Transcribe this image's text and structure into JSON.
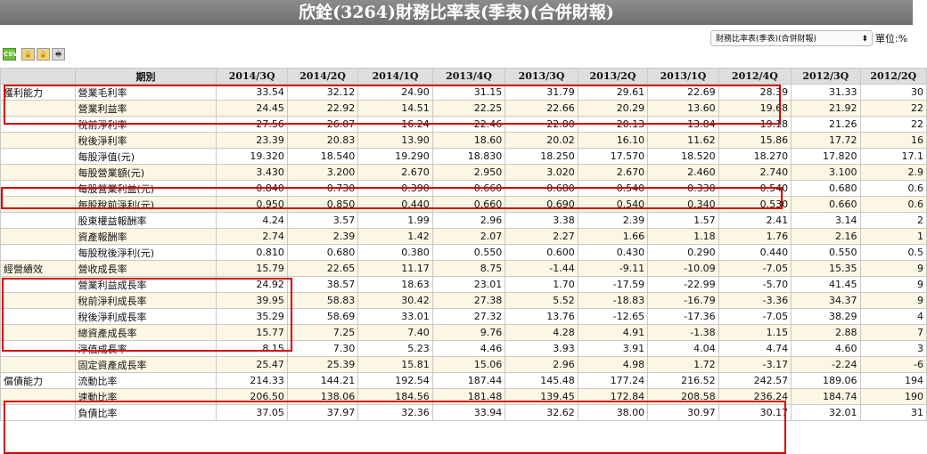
{
  "title": "欣銓(3264)財務比率表(季表)(合併財報)",
  "toolbar": {
    "csv_label": "CSV",
    "report_select_value": "財務比率表(季表)(合併財報)",
    "unit_label": "單位:%"
  },
  "table": {
    "header_label": "期別",
    "periods": [
      "2014/3Q",
      "2014/2Q",
      "2014/1Q",
      "2013/4Q",
      "2013/3Q",
      "2013/2Q",
      "2013/1Q",
      "2012/4Q",
      "2012/3Q",
      "2012/2Q"
    ],
    "rows": [
      {
        "category": "獲利能力",
        "item": "營業毛利率",
        "values": [
          "33.54",
          "32.12",
          "24.90",
          "31.15",
          "31.79",
          "29.61",
          "22.69",
          "28.39",
          "31.33",
          "30"
        ]
      },
      {
        "category": "",
        "item": "營業利益率",
        "values": [
          "24.45",
          "22.92",
          "14.51",
          "22.25",
          "22.66",
          "20.29",
          "13.60",
          "19.68",
          "21.92",
          "22"
        ]
      },
      {
        "category": "",
        "item": "稅前淨利率",
        "values": [
          "27.56",
          "26.07",
          "16.24",
          "22.46",
          "22.80",
          "20.13",
          "13.84",
          "19.18",
          "21.26",
          "22"
        ]
      },
      {
        "category": "",
        "item": "稅後淨利率",
        "values": [
          "23.39",
          "20.83",
          "13.90",
          "18.60",
          "20.02",
          "16.10",
          "11.62",
          "15.86",
          "17.72",
          "16"
        ]
      },
      {
        "category": "",
        "item": "每股淨值(元)",
        "values": [
          "19.320",
          "18.540",
          "19.290",
          "18.830",
          "18.250",
          "17.570",
          "18.520",
          "18.270",
          "17.820",
          "17.1"
        ]
      },
      {
        "category": "",
        "item": "每股營業額(元)",
        "values": [
          "3.430",
          "3.200",
          "2.670",
          "2.950",
          "3.020",
          "2.670",
          "2.460",
          "2.740",
          "3.100",
          "2.9"
        ]
      },
      {
        "category": "",
        "item": "每股營業利益(元)",
        "values": [
          "0.840",
          "0.730",
          "0.390",
          "0.660",
          "0.680",
          "0.540",
          "0.330",
          "0.540",
          "0.680",
          "0.6"
        ]
      },
      {
        "category": "",
        "item": "每股稅前淨利(元)",
        "values": [
          "0.950",
          "0.850",
          "0.440",
          "0.660",
          "0.690",
          "0.540",
          "0.340",
          "0.530",
          "0.660",
          "0.6"
        ]
      },
      {
        "category": "",
        "item": "股東權益報酬率",
        "values": [
          "4.24",
          "3.57",
          "1.99",
          "2.96",
          "3.38",
          "2.39",
          "1.57",
          "2.41",
          "3.14",
          "2"
        ]
      },
      {
        "category": "",
        "item": "資產報酬率",
        "values": [
          "2.74",
          "2.39",
          "1.42",
          "2.07",
          "2.27",
          "1.66",
          "1.18",
          "1.76",
          "2.16",
          "1"
        ]
      },
      {
        "category": "",
        "item": "每股稅後淨利(元)",
        "values": [
          "0.810",
          "0.680",
          "0.380",
          "0.550",
          "0.600",
          "0.430",
          "0.290",
          "0.440",
          "0.550",
          "0.5"
        ]
      },
      {
        "category": "經營績效",
        "item": "營收成長率",
        "values": [
          "15.79",
          "22.65",
          "11.17",
          "8.75",
          "-1.44",
          "-9.11",
          "-10.09",
          "-7.05",
          "15.35",
          "9"
        ]
      },
      {
        "category": "",
        "item": "營業利益成長率",
        "values": [
          "24.92",
          "38.57",
          "18.63",
          "23.01",
          "1.70",
          "-17.59",
          "-22.99",
          "-5.70",
          "41.45",
          "9"
        ]
      },
      {
        "category": "",
        "item": "稅前淨利成長率",
        "values": [
          "39.95",
          "58.83",
          "30.42",
          "27.38",
          "5.52",
          "-18.83",
          "-16.79",
          "-3.36",
          "34.37",
          "9"
        ]
      },
      {
        "category": "",
        "item": "稅後淨利成長率",
        "values": [
          "35.29",
          "58.69",
          "33.01",
          "27.32",
          "13.76",
          "-12.65",
          "-17.36",
          "-7.05",
          "38.29",
          "4"
        ]
      },
      {
        "category": "",
        "item": "總資產成長率",
        "values": [
          "15.77",
          "7.25",
          "7.40",
          "9.76",
          "4.28",
          "4.91",
          "-1.38",
          "1.15",
          "2.88",
          "7"
        ]
      },
      {
        "category": "",
        "item": "淨值成長率",
        "values": [
          "8.15",
          "7.30",
          "5.23",
          "4.46",
          "3.93",
          "3.91",
          "4.04",
          "4.74",
          "4.60",
          "3"
        ]
      },
      {
        "category": "",
        "item": "固定資產成長率",
        "values": [
          "25.47",
          "25.39",
          "15.81",
          "15.06",
          "2.96",
          "4.98",
          "1.72",
          "-3.17",
          "-2.24",
          "-6"
        ]
      },
      {
        "category": "償債能力",
        "item": "流動比率",
        "values": [
          "214.33",
          "144.21",
          "192.54",
          "187.44",
          "145.48",
          "177.24",
          "216.52",
          "242.57",
          "189.06",
          "194"
        ]
      },
      {
        "category": "",
        "item": "速動比率",
        "values": [
          "206.50",
          "138.06",
          "184.56",
          "181.48",
          "139.45",
          "172.84",
          "208.58",
          "236.24",
          "184.74",
          "190"
        ]
      },
      {
        "category": "",
        "item": "負債比率",
        "values": [
          "37.05",
          "37.97",
          "32.36",
          "33.94",
          "32.62",
          "38.00",
          "30.97",
          "30.17",
          "32.01",
          "31"
        ]
      }
    ]
  },
  "colors": {
    "negative": "#e00000",
    "highlight_box": "#d60000",
    "header_bg": "#dedede",
    "row_shade": "#fbf7e4"
  }
}
